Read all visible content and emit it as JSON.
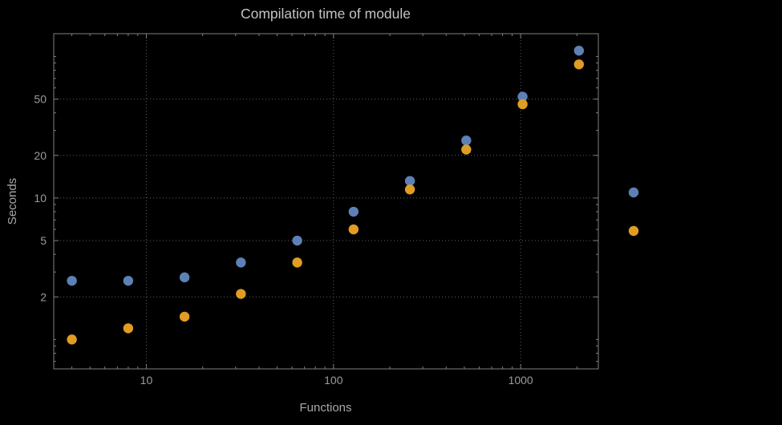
{
  "colors": {
    "background": "#000000",
    "frame": "#7f7f7f",
    "grid": "#5f5f5f",
    "title": "#c3c3c3",
    "axis_label": "#a8a8a8",
    "tick_label": "#9b9b9b",
    "series_blue": "#5e81b5",
    "series_orange": "#e19c24"
  },
  "chart_data": {
    "type": "scatter",
    "title": "Compilation time of module",
    "xlabel": "Functions",
    "ylabel": "Seconds",
    "x_scale": "log",
    "y_scale": "log",
    "grid": "dotted",
    "x_ticks": [
      10,
      100,
      1000
    ],
    "y_ticks": [
      2,
      5,
      10,
      20,
      50
    ],
    "x_range": [
      3.2,
      2600
    ],
    "y_range": [
      0.62,
      145
    ],
    "x": [
      4,
      8,
      16,
      32,
      64,
      128,
      256,
      512,
      1024,
      2048
    ],
    "series": [
      {
        "name": "blue",
        "color": "#5e81b5",
        "values": [
          2.6,
          2.6,
          2.75,
          3.5,
          5.0,
          8.0,
          13.2,
          25.5,
          52,
          110
        ]
      },
      {
        "name": "orange",
        "color": "#e19c24",
        "values": [
          1.0,
          1.2,
          1.45,
          2.1,
          3.5,
          6.0,
          11.5,
          22,
          46,
          88
        ]
      }
    ],
    "legend": {
      "position": "outside-right",
      "markers": [
        "#5e81b5",
        "#e19c24"
      ],
      "labels_visible": false
    }
  }
}
